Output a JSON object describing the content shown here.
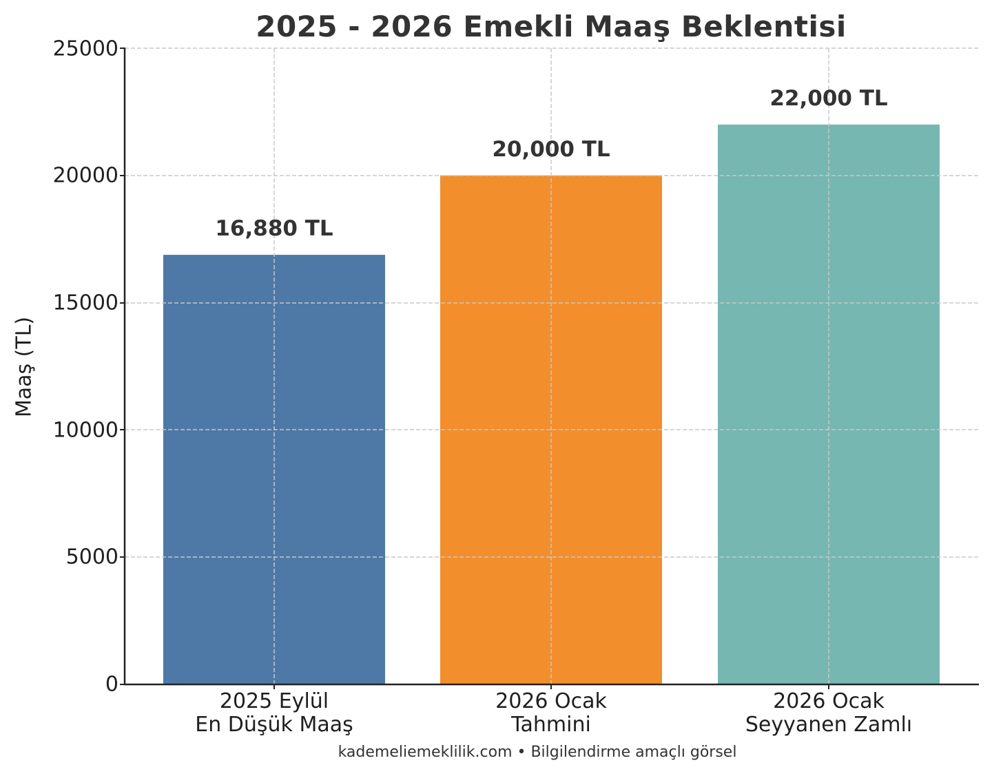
{
  "chart_data": {
    "type": "bar",
    "title": "2025 - 2026 Emekli Maaş Beklentisi",
    "xlabel": "",
    "ylabel": "Maaş (TL)",
    "ylim": [
      0,
      25000
    ],
    "yticks": [
      0,
      5000,
      10000,
      15000,
      20000,
      25000
    ],
    "ytick_labels": [
      "0",
      "5000",
      "10000",
      "15000",
      "20000",
      "25000"
    ],
    "grid": true,
    "grid_style": "dashed",
    "legend": null,
    "categories": [
      "2025 Eylül\nEn Düşük Maaş",
      "2026 Ocak\nTahmini",
      "2026 Ocak\nSeyyanen Zamlı"
    ],
    "values": [
      16880,
      20000,
      22000
    ],
    "data_labels": [
      "16,880 TL",
      "20,000 TL",
      "22,000 TL"
    ],
    "colors": [
      "#4e79a7",
      "#f28e2c",
      "#76b7b2"
    ],
    "footer": "kademeliemeklilik.com • Bilgilendirme amaçlı görsel"
  },
  "title": "2025 - 2026 Emekli Maaş Beklentisi",
  "ylabel": "Maaş (TL)",
  "yticks": {
    "t0": "0",
    "t1": "5000",
    "t2": "10000",
    "t3": "15000",
    "t4": "20000",
    "t5": "25000"
  },
  "bars": [
    {
      "line1": "2025 Eylül",
      "line2": "En Düşük Maaş",
      "label": "16,880 TL",
      "value": 16880,
      "color": "#4e79a7"
    },
    {
      "line1": "2026 Ocak",
      "line2": "Tahmini",
      "label": "20,000 TL",
      "value": 20000,
      "color": "#f28e2c"
    },
    {
      "line1": "2026 Ocak",
      "line2": "Seyyanen Zamlı",
      "label": "22,000 TL",
      "value": 22000,
      "color": "#76b7b2"
    }
  ],
  "footer": "kademeliemeklilik.com • Bilgilendirme amaçlı görsel"
}
